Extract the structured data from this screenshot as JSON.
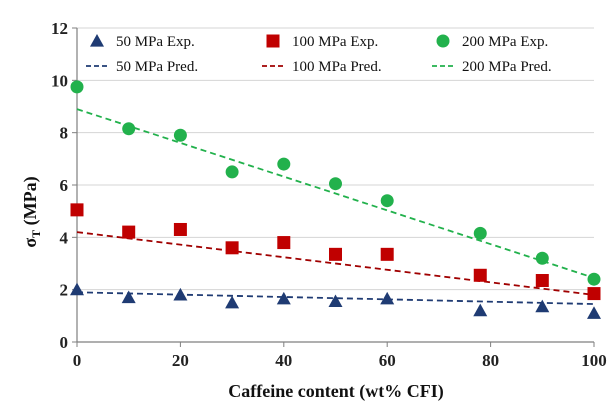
{
  "chart_data": {
    "type": "scatter",
    "xlabel": "Caffeine content (wt% CFI)",
    "ylabel_main": "σ",
    "ylabel_sub": "T",
    "ylabel_rest": " (MPa)",
    "xlim": [
      0,
      100
    ],
    "ylim": [
      0,
      12
    ],
    "xticks": [
      0,
      20,
      40,
      60,
      80,
      100
    ],
    "yticks": [
      0,
      2,
      4,
      6,
      8,
      10,
      12
    ],
    "xtick_labels": [
      "0",
      "20",
      "40",
      "60",
      "80",
      "100"
    ],
    "ytick_labels": [
      "0",
      "2",
      "4",
      "6",
      "8",
      "10",
      "12"
    ],
    "grid": "horizontal",
    "legend": "top",
    "series": [
      {
        "name": "50 MPa Exp.",
        "kind": "markers",
        "marker": "triangle",
        "color": "#1f3b73",
        "x": [
          0,
          10,
          20,
          30,
          40,
          50,
          60,
          78,
          90,
          100
        ],
        "y": [
          2.0,
          1.7,
          1.8,
          1.5,
          1.65,
          1.55,
          1.65,
          1.2,
          1.35,
          1.1
        ]
      },
      {
        "name": "100 MPa Exp.",
        "kind": "markers",
        "marker": "square",
        "color": "#c00000",
        "x": [
          0,
          10,
          20,
          30,
          40,
          50,
          60,
          78,
          90,
          100
        ],
        "y": [
          5.05,
          4.2,
          4.3,
          3.6,
          3.8,
          3.35,
          3.35,
          2.55,
          2.35,
          1.85
        ]
      },
      {
        "name": "200 MPa Exp.",
        "kind": "markers",
        "marker": "circle",
        "color": "#22b14c",
        "x": [
          0,
          10,
          20,
          30,
          40,
          50,
          60,
          78,
          90,
          100
        ],
        "y": [
          9.75,
          8.15,
          7.9,
          6.5,
          6.8,
          6.05,
          5.4,
          4.15,
          3.2,
          2.4
        ]
      },
      {
        "name": "50 MPa Pred.",
        "kind": "dashed-line",
        "color": "#1f3b73",
        "x": [
          0,
          100
        ],
        "y": [
          1.9,
          1.45
        ]
      },
      {
        "name": "100 MPa Pred.",
        "kind": "dashed-line",
        "color": "#a00000",
        "x": [
          0,
          100
        ],
        "y": [
          4.2,
          1.8
        ]
      },
      {
        "name": "200 MPa Pred.",
        "kind": "dashed-line",
        "color": "#22b14c",
        "x": [
          0,
          100
        ],
        "y": [
          8.9,
          2.45
        ]
      }
    ],
    "legend_order": [
      0,
      3,
      1,
      4,
      2,
      5
    ]
  }
}
